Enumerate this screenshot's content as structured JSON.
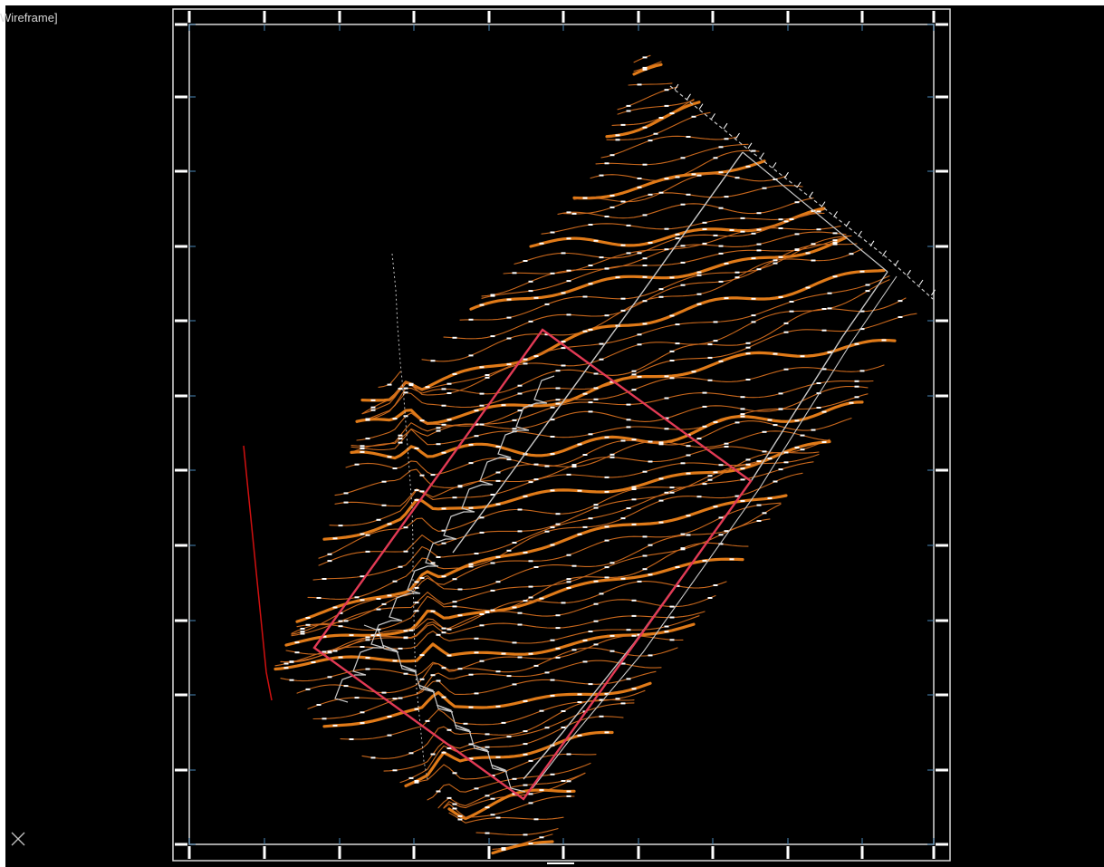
{
  "viewport": {
    "view_label": "Wireframe]"
  },
  "colors": {
    "background": "#000000",
    "frame": "#d9d9d9",
    "frame_tick": "#4a88b8",
    "contour_minor": "#c8671c",
    "contour_major": "#e07a18",
    "label_text": "#ffffff",
    "boundary": "#e23a55",
    "site_outline": "#c8c8c8",
    "axis_line": "#d01010"
  },
  "icons": {
    "ucs": "close-x-icon"
  }
}
